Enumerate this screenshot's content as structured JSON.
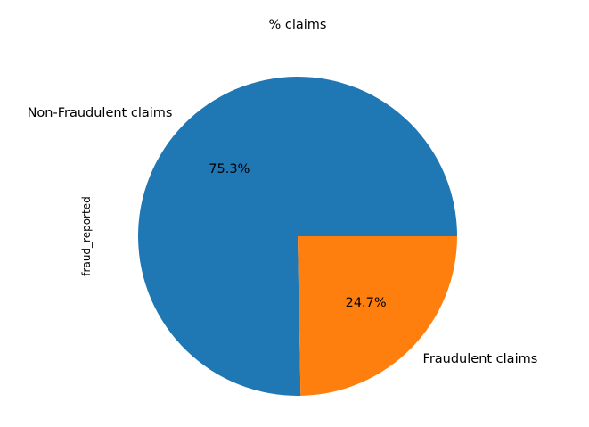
{
  "chart_data": {
    "type": "pie",
    "title": "% claims",
    "ylabel": "fraud_reported",
    "categories": [
      "Non-Fraudulent claims",
      "Fraudulent claims"
    ],
    "values": [
      75.3,
      24.7
    ],
    "value_labels": [
      "75.3%",
      "24.7%"
    ],
    "colors": [
      "#1f77b4",
      "#ff7f0e"
    ],
    "start_angle_deg": 0,
    "direction": "counterclockwise"
  }
}
